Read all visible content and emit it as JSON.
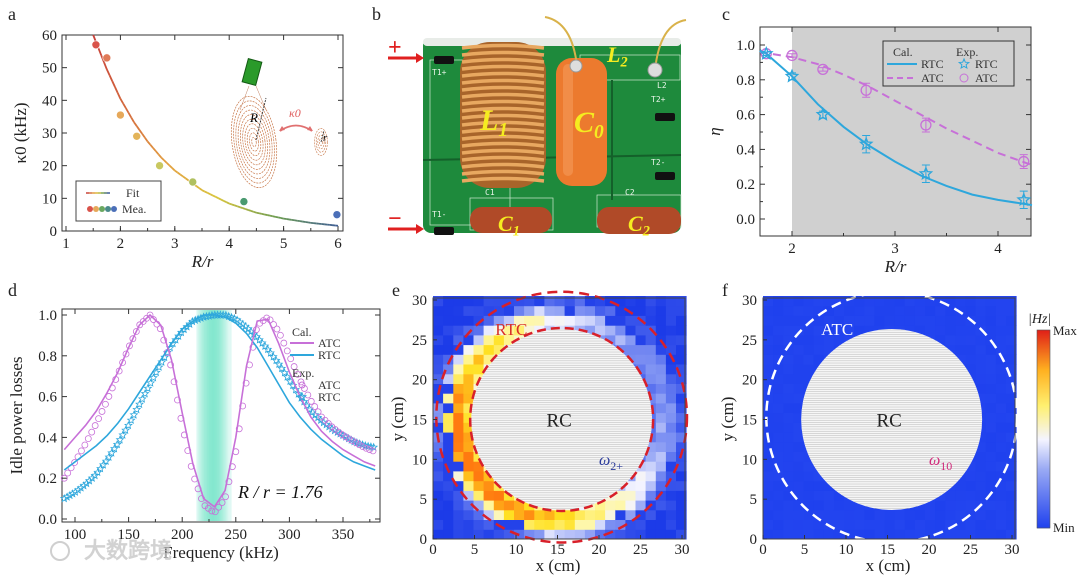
{
  "panel_labels": [
    "a",
    "b",
    "c",
    "d",
    "e",
    "f"
  ],
  "watermark": "大数跨境",
  "colors": {
    "atc": "#c770d8",
    "rtc": "#2ea7dc",
    "red_dash": "#d8202a",
    "pcb": "#1e8a3c"
  },
  "chart_data": [
    {
      "id": "a",
      "type": "scatter",
      "xlabel": "R/r",
      "ylabel": "κ0 (kHz)",
      "xlim": [
        1,
        6
      ],
      "ylim": [
        0,
        60
      ],
      "xtick_labels": [
        "1",
        "2",
        "3",
        "4",
        "5",
        "6"
      ],
      "ytick_labels": [
        "0",
        "10",
        "20",
        "30",
        "40",
        "50",
        "60"
      ],
      "legend": {
        "placement": "bottom-left",
        "fit": "Fit",
        "measured": "Mea."
      },
      "measured": {
        "x": [
          1.55,
          1.75,
          2.0,
          2.3,
          2.72,
          3.33,
          4.27,
          5.98
        ],
        "y": [
          57,
          53,
          35.5,
          29,
          20,
          15,
          9,
          5
        ],
        "colors": [
          "#d9534a",
          "#e07a58",
          "#e6a85a",
          "#e3b45a",
          "#c9c860",
          "#b0c060",
          "#4a9a70",
          "#4b6fb8"
        ]
      },
      "fit": {
        "x": [
          1.5,
          1.75,
          2.0,
          2.25,
          2.5,
          2.75,
          3.0,
          3.5,
          4.0,
          4.5,
          5.0,
          5.5,
          6.0
        ],
        "y": [
          60,
          49.5,
          40.5,
          33.3,
          27.4,
          22.5,
          18.5,
          12.5,
          8.4,
          5.6,
          3.8,
          2.5,
          1.6
        ]
      },
      "inset_labels": {
        "big_radius": "R",
        "small_radius": "r",
        "coupling": "κ0"
      }
    },
    {
      "id": "b",
      "type": "photo",
      "terminals": {
        "plus": "+",
        "minus": "−"
      },
      "components": [
        {
          "base": "L",
          "sub": "1"
        },
        {
          "base": "C",
          "sub": "0"
        },
        {
          "base": "L",
          "sub": "2"
        },
        {
          "base": "C",
          "sub": "1"
        },
        {
          "base": "C",
          "sub": "2"
        }
      ],
      "silkscreen": [
        "T1+",
        "T1-",
        "T2+",
        "T2-",
        "L2",
        "C1",
        "C2"
      ]
    },
    {
      "id": "c",
      "type": "line",
      "xlabel": "R/r",
      "ylabel": "η",
      "xlim": [
        1.69,
        4.33
      ],
      "ylim": [
        -0.1,
        1.1
      ],
      "xtick_labels": [
        "2",
        "3",
        "4"
      ],
      "ytick_labels": [
        "0.0",
        "0.2",
        "0.4",
        "0.6",
        "0.8",
        "1.0"
      ],
      "shaded_from_x": 2,
      "legend": {
        "placement": "top-right",
        "cal_header": "Cal.",
        "exp_header": "Exp.",
        "rtc": "RTC",
        "atc": "ATC"
      },
      "series": [
        {
          "name": "Cal. RTC",
          "style": "solid",
          "x": [
            1.69,
            1.75,
            2.0,
            2.25,
            2.5,
            2.75,
            3.0,
            3.25,
            3.5,
            3.75,
            4.0,
            4.33
          ],
          "y": [
            0.97,
            0.95,
            0.82,
            0.66,
            0.53,
            0.42,
            0.33,
            0.25,
            0.19,
            0.14,
            0.11,
            0.08
          ]
        },
        {
          "name": "Cal. ATC",
          "style": "dashed",
          "x": [
            1.69,
            2.0,
            2.25,
            2.5,
            2.75,
            3.0,
            3.25,
            3.5,
            3.75,
            4.0,
            4.33
          ],
          "y": [
            0.96,
            0.93,
            0.89,
            0.83,
            0.76,
            0.68,
            0.6,
            0.52,
            0.45,
            0.38,
            0.31
          ]
        },
        {
          "name": "Exp. RTC",
          "marker": "star",
          "x": [
            1.75,
            2.0,
            2.3,
            2.72,
            3.3,
            4.25
          ],
          "y": [
            0.95,
            0.82,
            0.6,
            0.43,
            0.26,
            0.11
          ],
          "err": [
            0.01,
            0.02,
            0.02,
            0.05,
            0.05,
            0.05
          ]
        },
        {
          "name": "Exp. ATC",
          "marker": "circle",
          "x": [
            1.75,
            2.0,
            2.3,
            2.72,
            3.3,
            4.25
          ],
          "y": [
            0.95,
            0.94,
            0.86,
            0.74,
            0.54,
            0.33
          ],
          "err": [
            0.01,
            0.01,
            0.01,
            0.04,
            0.04,
            0.04
          ]
        }
      ]
    },
    {
      "id": "d",
      "type": "line",
      "xlabel": "Frequency (kHz)",
      "ylabel": "Idle power losses",
      "xlim": [
        88,
        383
      ],
      "ylim": [
        0,
        1.02
      ],
      "xtick_labels": [
        "100",
        "150",
        "200",
        "250",
        "300",
        "350"
      ],
      "ytick_labels": [
        "0.0",
        "0.2",
        "0.4",
        "0.6",
        "0.8",
        "1.0"
      ],
      "highlight_band_kHz": [
        213,
        246
      ],
      "annotation": "R / r = 1.76",
      "legend": {
        "placement": "top-right",
        "cal_header": "Cal.",
        "exp_header": "Exp.",
        "atc": "ATC",
        "rtc": "RTC"
      },
      "x": [
        90,
        100,
        110,
        120,
        130,
        140,
        150,
        160,
        170,
        180,
        190,
        200,
        210,
        220,
        230,
        240,
        250,
        260,
        270,
        280,
        290,
        300,
        310,
        320,
        330,
        340,
        350,
        360,
        370,
        380
      ],
      "series": [
        {
          "name": "Cal. ATC",
          "y": [
            0.34,
            0.4,
            0.46,
            0.53,
            0.62,
            0.72,
            0.84,
            0.95,
            1.0,
            0.95,
            0.78,
            0.52,
            0.27,
            0.1,
            0.06,
            0.14,
            0.4,
            0.75,
            0.97,
            0.98,
            0.86,
            0.72,
            0.6,
            0.5,
            0.43,
            0.38,
            0.34,
            0.31,
            0.28,
            0.26
          ]
        },
        {
          "name": "Cal. RTC",
          "y": [
            0.24,
            0.28,
            0.32,
            0.36,
            0.41,
            0.47,
            0.54,
            0.62,
            0.7,
            0.78,
            0.86,
            0.93,
            0.97,
            1.0,
            1.0,
            0.99,
            0.96,
            0.91,
            0.84,
            0.75,
            0.66,
            0.57,
            0.5,
            0.44,
            0.39,
            0.35,
            0.31,
            0.28,
            0.26,
            0.24
          ]
        },
        {
          "name": "Exp. ATC",
          "marker": "circle",
          "y": [
            0.2,
            0.28,
            0.37,
            0.47,
            0.58,
            0.71,
            0.84,
            0.95,
            1.0,
            0.93,
            0.74,
            0.46,
            0.22,
            0.07,
            0.03,
            0.1,
            0.33,
            0.68,
            0.95,
            0.99,
            0.92,
            0.8,
            0.68,
            0.58,
            0.5,
            0.45,
            0.41,
            0.38,
            0.35,
            0.33
          ]
        },
        {
          "name": "Exp. RTC",
          "marker": "star",
          "y": [
            0.1,
            0.13,
            0.17,
            0.22,
            0.29,
            0.37,
            0.46,
            0.56,
            0.66,
            0.76,
            0.85,
            0.92,
            0.97,
            0.99,
            1.0,
            1.0,
            0.98,
            0.94,
            0.89,
            0.83,
            0.76,
            0.68,
            0.6,
            0.53,
            0.48,
            0.44,
            0.41,
            0.38,
            0.36,
            0.35
          ]
        }
      ]
    },
    {
      "id": "e",
      "type": "heatmap",
      "xlabel": "x (cm)",
      "ylabel": "y (cm)",
      "xlim": [
        0,
        30.5
      ],
      "ylim": [
        0,
        30.5
      ],
      "xtick_labels": [
        "0",
        "5",
        "10",
        "15",
        "20",
        "25",
        "30"
      ],
      "ytick_labels": [
        "0",
        "5",
        "10",
        "15",
        "20",
        "25",
        "30"
      ],
      "labels": {
        "ring": "RTC",
        "center": "RC",
        "mode_base": "ω",
        "mode_sub": "2+"
      },
      "field_pattern": "bright ring around RC, strongest on left side"
    },
    {
      "id": "f",
      "type": "heatmap",
      "xlabel": "x (cm)",
      "ylabel": "y (cm)",
      "xlim": [
        0,
        30.5
      ],
      "ylim": [
        0,
        30.5
      ],
      "xtick_labels": [
        "0",
        "5",
        "10",
        "15",
        "20",
        "25",
        "30"
      ],
      "ytick_labels": [
        "0",
        "5",
        "10",
        "15",
        "20",
        "25",
        "30"
      ],
      "labels": {
        "ring": "ATC",
        "center": "RC",
        "mode_base": "ω",
        "mode_sub": "10"
      },
      "field_pattern": "uniformly low field",
      "colorbar": {
        "title": "|Hz|",
        "max": "Max",
        "min": "Min"
      }
    }
  ]
}
